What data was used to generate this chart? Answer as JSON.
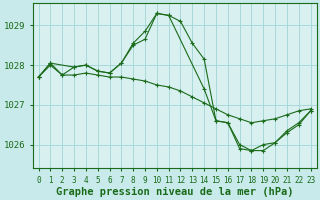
{
  "background_color": "#c8eaea",
  "plot_bg_color": "#d8f0f0",
  "grid_color": "#a8d8d8",
  "line_color": "#1a6b1a",
  "xlabel": "Graphe pression niveau de la mer (hPa)",
  "xlabel_fontsize": 7.5,
  "xlim": [
    -0.5,
    23.5
  ],
  "ylim": [
    1025.4,
    1029.55
  ],
  "yticks": [
    1026,
    1027,
    1028,
    1029
  ],
  "xticks": [
    0,
    1,
    2,
    3,
    4,
    5,
    6,
    7,
    8,
    9,
    10,
    11,
    12,
    13,
    14,
    15,
    16,
    17,
    18,
    19,
    20,
    21,
    22,
    23
  ],
  "series": [
    {
      "x": [
        0,
        1,
        2,
        3,
        4,
        5,
        6,
        7,
        8,
        9,
        10,
        11,
        12,
        13,
        14,
        15,
        16,
        17,
        18,
        19,
        20,
        21,
        22,
        23
      ],
      "y": [
        1027.7,
        1028.0,
        1027.75,
        1027.75,
        1027.8,
        1027.75,
        1027.7,
        1027.7,
        1027.65,
        1027.6,
        1027.5,
        1027.45,
        1027.35,
        1027.2,
        1027.05,
        1026.9,
        1026.75,
        1026.65,
        1026.55,
        1026.6,
        1026.65,
        1026.75,
        1026.85,
        1026.9
      ]
    },
    {
      "x": [
        0,
        1,
        2,
        3,
        4,
        5,
        6,
        7,
        8,
        9,
        10,
        11,
        12,
        13,
        14,
        15,
        16,
        17,
        18,
        19,
        20,
        21,
        22,
        23
      ],
      "y": [
        1027.7,
        1028.05,
        1027.75,
        1027.95,
        1028.0,
        1027.85,
        1027.8,
        1028.05,
        1028.55,
        1028.85,
        1029.3,
        1029.25,
        1029.1,
        1028.55,
        1028.15,
        1026.6,
        1026.55,
        1026.0,
        1025.85,
        1025.85,
        1026.05,
        1026.35,
        1026.55,
        1026.85
      ]
    },
    {
      "x": [
        0,
        1,
        3,
        4,
        5,
        6,
        7,
        8,
        9,
        10,
        11,
        14,
        15,
        16,
        17,
        18,
        19,
        20,
        21,
        22,
        23
      ],
      "y": [
        1027.7,
        1028.05,
        1027.95,
        1028.0,
        1027.85,
        1027.8,
        1028.05,
        1028.5,
        1028.65,
        1029.3,
        1029.25,
        1027.4,
        1026.6,
        1026.55,
        1025.9,
        1025.85,
        1026.0,
        1026.05,
        1026.3,
        1026.5,
        1026.85
      ]
    }
  ]
}
